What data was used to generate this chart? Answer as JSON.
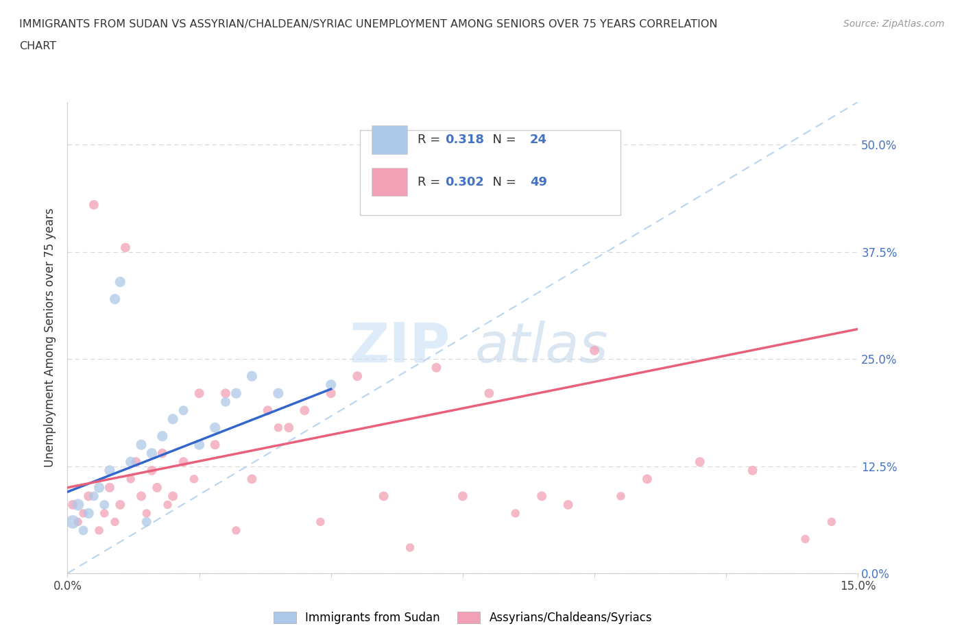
{
  "title": "IMMIGRANTS FROM SUDAN VS ASSYRIAN/CHALDEAN/SYRIAC UNEMPLOYMENT AMONG SENIORS OVER 75 YEARS CORRELATION\nCHART",
  "source": "Source: ZipAtlas.com",
  "ylabel": "Unemployment Among Seniors over 75 years",
  "xlim": [
    0.0,
    0.15
  ],
  "ylim": [
    0.0,
    0.55
  ],
  "yticks": [
    0.0,
    0.125,
    0.25,
    0.375,
    0.5
  ],
  "ytick_labels": [
    "0.0%",
    "12.5%",
    "25.0%",
    "37.5%",
    "50.0%"
  ],
  "xticks": [
    0.0,
    0.025,
    0.05,
    0.075,
    0.1,
    0.125,
    0.15
  ],
  "xtick_labels": [
    "0.0%",
    "",
    "",
    "",
    "",
    "",
    "15.0%"
  ],
  "blue_R": 0.318,
  "blue_N": 24,
  "pink_R": 0.302,
  "pink_N": 49,
  "blue_color": "#adc8e8",
  "pink_color": "#f2a0b5",
  "blue_line_color": "#3366cc",
  "pink_line_color": "#e8607a",
  "diag_line_color": "#b8d4f0",
  "watermark_zip": "ZIP",
  "watermark_atlas": "atlas",
  "legend_blue_label": "Immigrants from Sudan",
  "legend_pink_label": "Assyrians/Chaldeans/Syriacs",
  "blue_scatter_x": [
    0.001,
    0.002,
    0.003,
    0.004,
    0.005,
    0.006,
    0.007,
    0.008,
    0.009,
    0.01,
    0.012,
    0.014,
    0.015,
    0.016,
    0.018,
    0.02,
    0.022,
    0.025,
    0.028,
    0.03,
    0.032,
    0.035,
    0.04,
    0.05
  ],
  "blue_scatter_y": [
    0.06,
    0.08,
    0.05,
    0.07,
    0.09,
    0.1,
    0.08,
    0.12,
    0.32,
    0.34,
    0.13,
    0.15,
    0.06,
    0.14,
    0.16,
    0.18,
    0.19,
    0.15,
    0.17,
    0.2,
    0.21,
    0.23,
    0.21,
    0.22
  ],
  "blue_scatter_size": [
    200,
    150,
    100,
    120,
    100,
    120,
    100,
    120,
    120,
    120,
    120,
    120,
    100,
    120,
    120,
    120,
    100,
    120,
    120,
    100,
    120,
    120,
    120,
    120
  ],
  "pink_scatter_x": [
    0.001,
    0.002,
    0.003,
    0.004,
    0.005,
    0.006,
    0.007,
    0.008,
    0.009,
    0.01,
    0.011,
    0.012,
    0.013,
    0.014,
    0.015,
    0.016,
    0.017,
    0.018,
    0.019,
    0.02,
    0.022,
    0.024,
    0.025,
    0.028,
    0.03,
    0.032,
    0.035,
    0.038,
    0.04,
    0.042,
    0.045,
    0.048,
    0.05,
    0.055,
    0.06,
    0.065,
    0.07,
    0.075,
    0.08,
    0.085,
    0.09,
    0.095,
    0.1,
    0.105,
    0.11,
    0.12,
    0.13,
    0.14,
    0.145
  ],
  "pink_scatter_y": [
    0.08,
    0.06,
    0.07,
    0.09,
    0.43,
    0.05,
    0.07,
    0.1,
    0.06,
    0.08,
    0.38,
    0.11,
    0.13,
    0.09,
    0.07,
    0.12,
    0.1,
    0.14,
    0.08,
    0.09,
    0.13,
    0.11,
    0.21,
    0.15,
    0.21,
    0.05,
    0.11,
    0.19,
    0.17,
    0.17,
    0.19,
    0.06,
    0.21,
    0.23,
    0.09,
    0.03,
    0.24,
    0.09,
    0.21,
    0.07,
    0.09,
    0.08,
    0.26,
    0.09,
    0.11,
    0.13,
    0.12,
    0.04,
    0.06
  ],
  "pink_scatter_size": [
    100,
    80,
    80,
    100,
    100,
    80,
    80,
    100,
    80,
    100,
    100,
    80,
    100,
    100,
    80,
    100,
    100,
    100,
    80,
    100,
    100,
    80,
    100,
    100,
    100,
    80,
    100,
    100,
    80,
    100,
    100,
    80,
    100,
    100,
    100,
    80,
    100,
    100,
    100,
    80,
    100,
    100,
    100,
    80,
    100,
    100,
    100,
    80,
    80
  ],
  "blue_line_x0": 0.0,
  "blue_line_y0": 0.095,
  "blue_line_x1": 0.05,
  "blue_line_y1": 0.215,
  "pink_line_x0": 0.0,
  "pink_line_y0": 0.1,
  "pink_line_x1": 0.15,
  "pink_line_y1": 0.285
}
